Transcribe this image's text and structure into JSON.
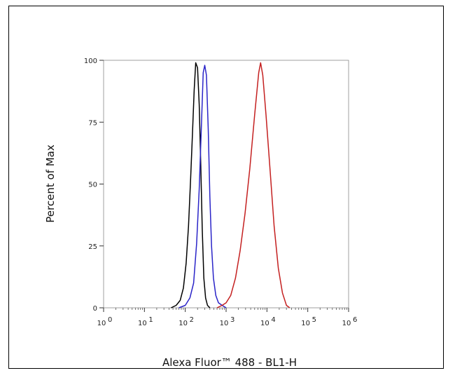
{
  "chart_data": {
    "type": "line",
    "title": "",
    "xlabel": "Alexa Fluor™ 488 - BL1-H",
    "ylabel": "Percent of Max",
    "x_scale": "log",
    "xlim": [
      1,
      1000000
    ],
    "ylim": [
      0,
      100
    ],
    "x_ticks": [
      {
        "value": 1,
        "base": "10",
        "exp": "0"
      },
      {
        "value": 10,
        "base": "10",
        "exp": "1"
      },
      {
        "value": 100,
        "base": "10",
        "exp": "2"
      },
      {
        "value": 1000,
        "base": "10",
        "exp": "3"
      },
      {
        "value": 10000,
        "base": "10",
        "exp": "4"
      },
      {
        "value": 100000,
        "base": "10",
        "exp": "5"
      },
      {
        "value": 1000000,
        "base": "10",
        "exp": "6"
      }
    ],
    "y_ticks": [
      "0",
      "25",
      "50",
      "75",
      "100"
    ],
    "grid": false,
    "legend": "none",
    "series": [
      {
        "color": "#000000",
        "x": [
          45,
          60,
          75,
          90,
          105,
          120,
          135,
          150,
          165,
          180,
          200,
          220,
          240,
          260,
          285,
          315,
          350,
          400
        ],
        "y": [
          0,
          1,
          3,
          8,
          18,
          33,
          52,
          70,
          88,
          99,
          97,
          82,
          58,
          32,
          12,
          4,
          1,
          0
        ]
      },
      {
        "color": "#2a24c8",
        "x": [
          70,
          100,
          130,
          160,
          190,
          220,
          250,
          275,
          300,
          330,
          365,
          400,
          440,
          490,
          560,
          650,
          800,
          1000
        ],
        "y": [
          0,
          1,
          4,
          10,
          26,
          48,
          75,
          95,
          98,
          94,
          72,
          45,
          25,
          12,
          5,
          2,
          1,
          0
        ]
      },
      {
        "color": "#c42020",
        "x": [
          600,
          800,
          1000,
          1300,
          1700,
          2200,
          2900,
          3800,
          5000,
          6300,
          7000,
          7900,
          9500,
          12000,
          15000,
          19000,
          24000,
          30000,
          36000
        ],
        "y": [
          0,
          1,
          2,
          5,
          12,
          23,
          38,
          56,
          78,
          95,
          99,
          94,
          78,
          55,
          33,
          16,
          6,
          1,
          0
        ]
      }
    ]
  }
}
